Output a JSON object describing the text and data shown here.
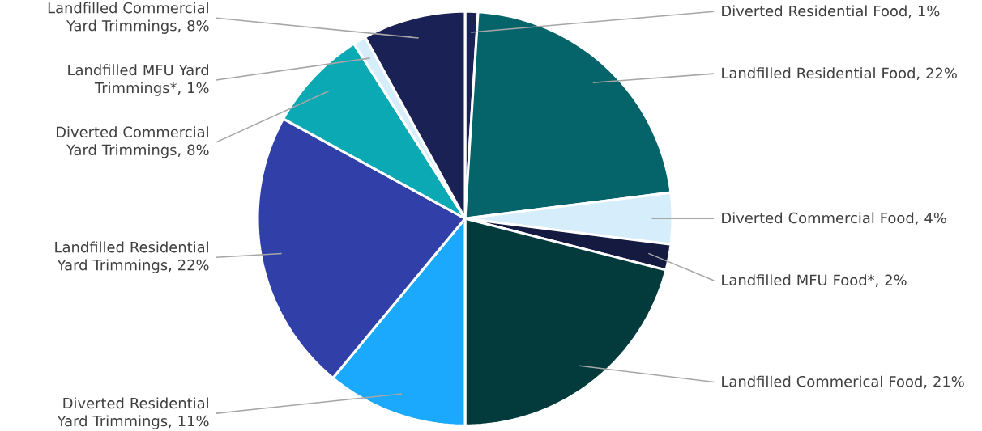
{
  "chart_data": {
    "type": "pie",
    "categories": [
      "Diverted Residential Food",
      "Landfilled Residential Food",
      "Diverted Commercial Food",
      "Landfilled MFU Food*",
      "Landfilled Commerical Food",
      "Diverted Residential Yard Trimmings",
      "Landfilled Residential Yard Trimmings",
      "Diverted Commercial Yard Trimmings",
      "Landfilled MFU Yard Trimmings*",
      "Landfilled Commercial Yard Trimmings"
    ],
    "values": [
      1,
      22,
      4,
      2,
      21,
      11,
      22,
      8,
      1,
      8
    ],
    "value_labels": [
      ", 1%",
      ", 22%",
      ", 4%",
      ", 2%",
      ", 21%",
      ", 11%",
      ", 22%",
      ", 8%",
      ", 1%",
      ", 8%"
    ],
    "colors": [
      "#1a2155",
      "#05646a",
      "#d6eefc",
      "#141a40",
      "#033a3c",
      "#1aa9fc",
      "#3040a8",
      "#0aa9b4",
      "#d6eefc",
      "#1a2155"
    ]
  }
}
